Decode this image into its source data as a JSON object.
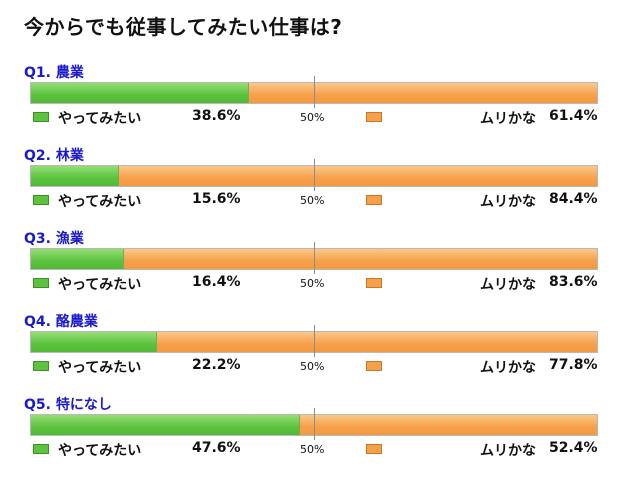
{
  "title": "今からでも従事してみたい仕事は?",
  "scale_mid_label": "50%",
  "legend": {
    "yes": "やってみたい",
    "no": "ムリかな"
  },
  "colors": {
    "yes": "#5cc33e",
    "no": "#f6a04a",
    "question": "#1a1acc"
  },
  "chart_data": {
    "type": "bar",
    "orientation": "horizontal-stacked-100",
    "title": "今からでも従事してみたい仕事は?",
    "xlim": [
      0,
      100
    ],
    "series": [
      {
        "name": "やってみたい",
        "values": [
          38.6,
          15.6,
          16.4,
          22.2,
          47.6
        ]
      },
      {
        "name": "ムリかな",
        "values": [
          61.4,
          84.4,
          83.6,
          77.8,
          52.4
        ]
      }
    ],
    "categories": [
      "Q1. 農業",
      "Q2. 林業",
      "Q3. 漁業",
      "Q4. 酪農業",
      "Q5. 特になし"
    ],
    "questions": [
      {
        "label": "Q1. 農業",
        "yes": 38.6,
        "no": 61.4,
        "yes_text": "38.6%",
        "no_text": "61.4%"
      },
      {
        "label": "Q2. 林業",
        "yes": 15.6,
        "no": 84.4,
        "yes_text": "15.6%",
        "no_text": "84.4%"
      },
      {
        "label": "Q3. 漁業",
        "yes": 16.4,
        "no": 83.6,
        "yes_text": "16.4%",
        "no_text": "83.6%"
      },
      {
        "label": "Q4. 酪農業",
        "yes": 22.2,
        "no": 77.8,
        "yes_text": "22.2%",
        "no_text": "77.8%"
      },
      {
        "label": "Q5. 特になし",
        "yes": 47.6,
        "no": 52.4,
        "yes_text": "47.6%",
        "no_text": "52.4%"
      }
    ]
  }
}
